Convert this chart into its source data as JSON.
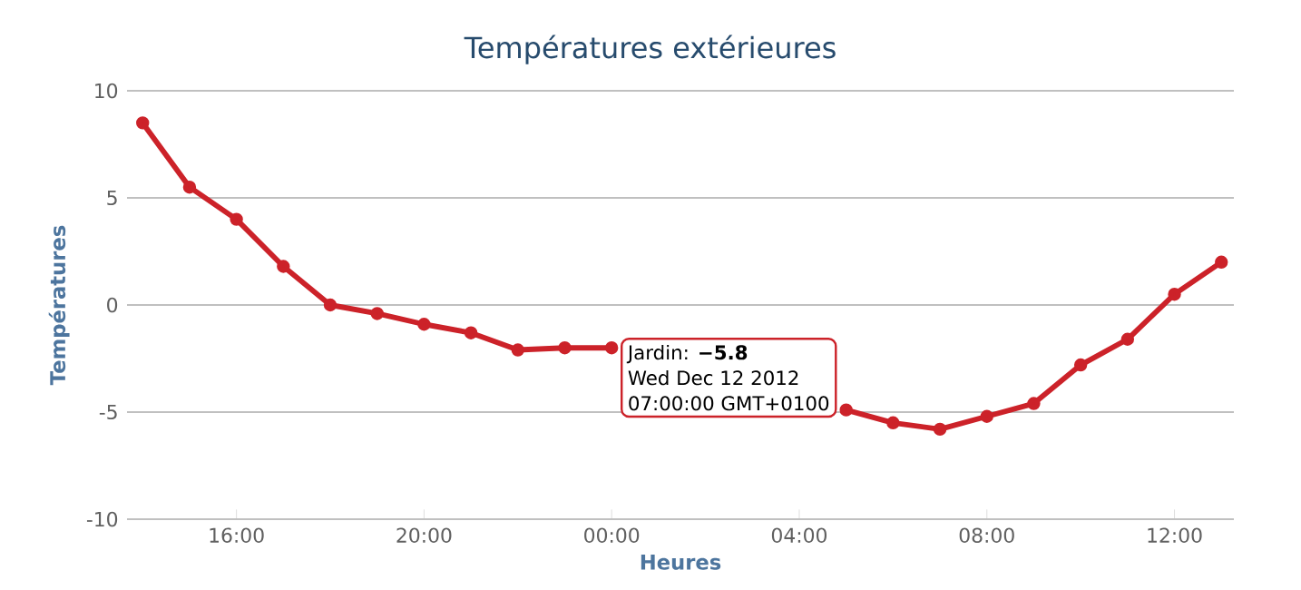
{
  "chart_data": {
    "type": "line",
    "title": "Températures extérieures",
    "xlabel": "Heures",
    "ylabel": "Températures",
    "x": [
      "2012-12-11T14:00",
      "2012-12-11T15:00",
      "2012-12-11T16:00",
      "2012-12-11T17:00",
      "2012-12-11T18:00",
      "2012-12-11T19:00",
      "2012-12-11T20:00",
      "2012-12-11T21:00",
      "2012-12-11T22:00",
      "2012-12-11T23:00",
      "2012-12-12T00:00",
      "2012-12-12T01:00",
      "2012-12-12T02:00",
      "2012-12-12T03:00",
      "2012-12-12T04:00",
      "2012-12-12T05:00",
      "2012-12-12T06:00",
      "2012-12-12T07:00",
      "2012-12-12T08:00",
      "2012-12-12T09:00",
      "2012-12-12T10:00",
      "2012-12-12T11:00",
      "2012-12-12T12:00",
      "2012-12-12T13:00"
    ],
    "series": [
      {
        "color": "#cc2229",
        "values": [
          8.5,
          5.5,
          4.0,
          1.8,
          0.0,
          -0.4,
          -0.9,
          -1.3,
          -2.1,
          -2.0,
          -2.0,
          null,
          null,
          null,
          null,
          -4.9,
          -5.5,
          -5.8,
          -5.2,
          -4.6,
          -2.8,
          -1.6,
          0.5,
          2.0
        ]
      }
    ],
    "xlim": [
      "2012-12-11T13:40",
      "2012-12-12T13:16"
    ],
    "xticks": [
      {
        "value": "2012-12-11T16:00",
        "label": "16:00"
      },
      {
        "value": "2012-12-11T20:00",
        "label": "20:00"
      },
      {
        "value": "2012-12-12T00:00",
        "label": "00:00"
      },
      {
        "value": "2012-12-12T04:00",
        "label": "04:00"
      },
      {
        "value": "2012-12-12T08:00",
        "label": "08:00"
      },
      {
        "value": "2012-12-12T12:00",
        "label": "12:00"
      }
    ],
    "ylim": [
      -10,
      10
    ],
    "yticks": [
      -10,
      -5,
      0,
      5,
      10
    ],
    "grid": "y",
    "marker": "circle",
    "line_style": "solid",
    "annotations": [
      "Jardin: **−5.8**",
      "Wed Dec 12 2012",
      "07:00:00 GMT+0100"
    ]
  }
}
